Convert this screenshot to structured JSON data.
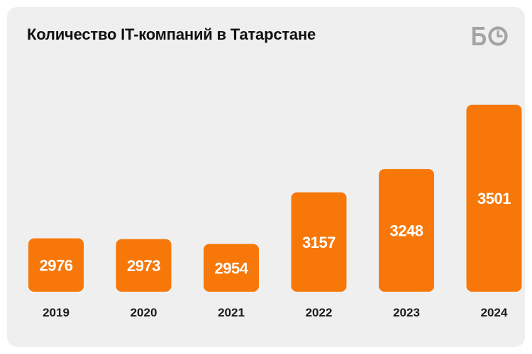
{
  "title": "Количество IT-компаний в Татарстане",
  "logo": {
    "icon": "bo-logo-icon",
    "text": "БО",
    "color": "#a3a3a3"
  },
  "colors": {
    "bar": "#f77808",
    "background": "#efefef",
    "text": "#111111"
  },
  "chart_data": {
    "type": "bar",
    "title": "Количество IT-компаний в Татарстане",
    "categories": [
      "2019",
      "2020",
      "2021",
      "2022",
      "2023",
      "2024"
    ],
    "values": [
      2976,
      2973,
      2954,
      3157,
      3248,
      3501
    ],
    "xlabel": "",
    "ylabel": "",
    "grid": false,
    "legend": "none",
    "data_labels": true
  }
}
